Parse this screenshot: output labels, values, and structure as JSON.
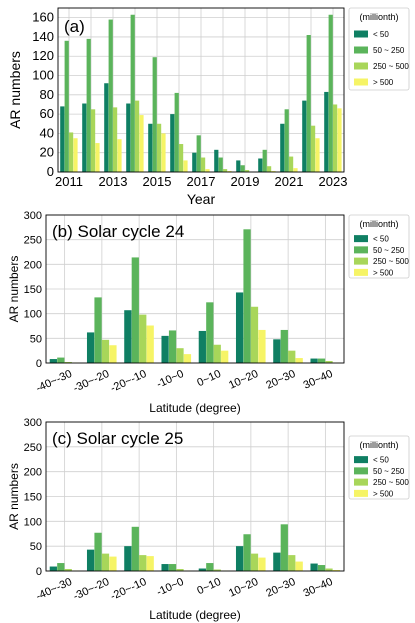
{
  "colors": [
    "#0f7f63",
    "#5bb45b",
    "#a8d65a",
    "#f6f466"
  ],
  "legend": {
    "title": "(millionth)",
    "labels": [
      "< 50",
      "50 ~ 250",
      "250 ~ 500",
      "> 500"
    ]
  },
  "chart_data": [
    {
      "type": "bar",
      "title": "(a)",
      "xlabel": "Year",
      "ylabel": "AR numbers",
      "ylim": [
        0,
        170
      ],
      "yticks": [
        0,
        20,
        40,
        60,
        80,
        100,
        120,
        140,
        160
      ],
      "categories": [
        "2011",
        "2012",
        "2013",
        "2014",
        "2015",
        "2016",
        "2017",
        "2018",
        "2019",
        "2020",
        "2021",
        "2022",
        "2023"
      ],
      "xtick_labels": [
        "2011",
        "",
        "2013",
        "",
        "2015",
        "",
        "2017",
        "",
        "2019",
        "",
        "2021",
        "",
        "2023"
      ],
      "legend_position": "outside-right",
      "grid": true,
      "series": [
        {
          "name": "< 50",
          "values": [
            68,
            71,
            92,
            71,
            50,
            60,
            20,
            23,
            12,
            14,
            50,
            74,
            83
          ]
        },
        {
          "name": "50 ~ 250",
          "values": [
            136,
            138,
            158,
            163,
            119,
            82,
            38,
            15,
            7,
            23,
            65,
            142,
            163
          ]
        },
        {
          "name": "250 ~ 500",
          "values": [
            41,
            65,
            67,
            74,
            50,
            29,
            15,
            3,
            2,
            6,
            16,
            48,
            70
          ]
        },
        {
          "name": "> 500",
          "values": [
            35,
            30,
            34,
            59,
            40,
            12,
            3,
            1,
            0,
            1,
            4,
            35,
            66
          ]
        }
      ]
    },
    {
      "type": "bar",
      "title": "(b) Solar cycle 24",
      "xlabel": "Latitude (degree)",
      "ylabel": "AR numbers",
      "ylim": [
        0,
        300
      ],
      "yticks": [
        0,
        50,
        100,
        150,
        200,
        250,
        300
      ],
      "categories": [
        "-40~-30",
        "-30~-20",
        "-20~-10",
        "-10~0",
        "0~10",
        "10~20",
        "20~30",
        "30~40"
      ],
      "legend_position": "outside-right",
      "grid": true,
      "series": [
        {
          "name": "< 50",
          "values": [
            8,
            62,
            107,
            55,
            65,
            143,
            48,
            9
          ]
        },
        {
          "name": "50 ~ 250",
          "values": [
            11,
            133,
            214,
            66,
            123,
            271,
            67,
            9
          ]
        },
        {
          "name": "250 ~ 500",
          "values": [
            2,
            47,
            98,
            30,
            37,
            114,
            25,
            4
          ]
        },
        {
          "name": "> 500",
          "values": [
            1,
            36,
            76,
            18,
            25,
            67,
            10,
            1
          ]
        }
      ]
    },
    {
      "type": "bar",
      "title": "(c) Solar cycle 25",
      "xlabel": "Latitude (degree)",
      "ylabel": "AR numbers",
      "ylim": [
        0,
        300
      ],
      "yticks": [
        0,
        50,
        100,
        150,
        200,
        250,
        300
      ],
      "categories": [
        "-40~-30",
        "-30~-20",
        "-20~-10",
        "-10~0",
        "0~10",
        "10~20",
        "20~30",
        "30~40"
      ],
      "legend_position": "outside-right",
      "grid": true,
      "series": [
        {
          "name": "< 50",
          "values": [
            9,
            43,
            50,
            14,
            5,
            50,
            37,
            15
          ]
        },
        {
          "name": "50 ~ 250",
          "values": [
            16,
            77,
            89,
            14,
            16,
            74,
            94,
            12
          ]
        },
        {
          "name": "250 ~ 500",
          "values": [
            4,
            35,
            32,
            4,
            3,
            35,
            32,
            5
          ]
        },
        {
          "name": "> 500",
          "values": [
            1,
            29,
            30,
            1,
            1,
            27,
            19,
            2
          ]
        }
      ]
    }
  ]
}
